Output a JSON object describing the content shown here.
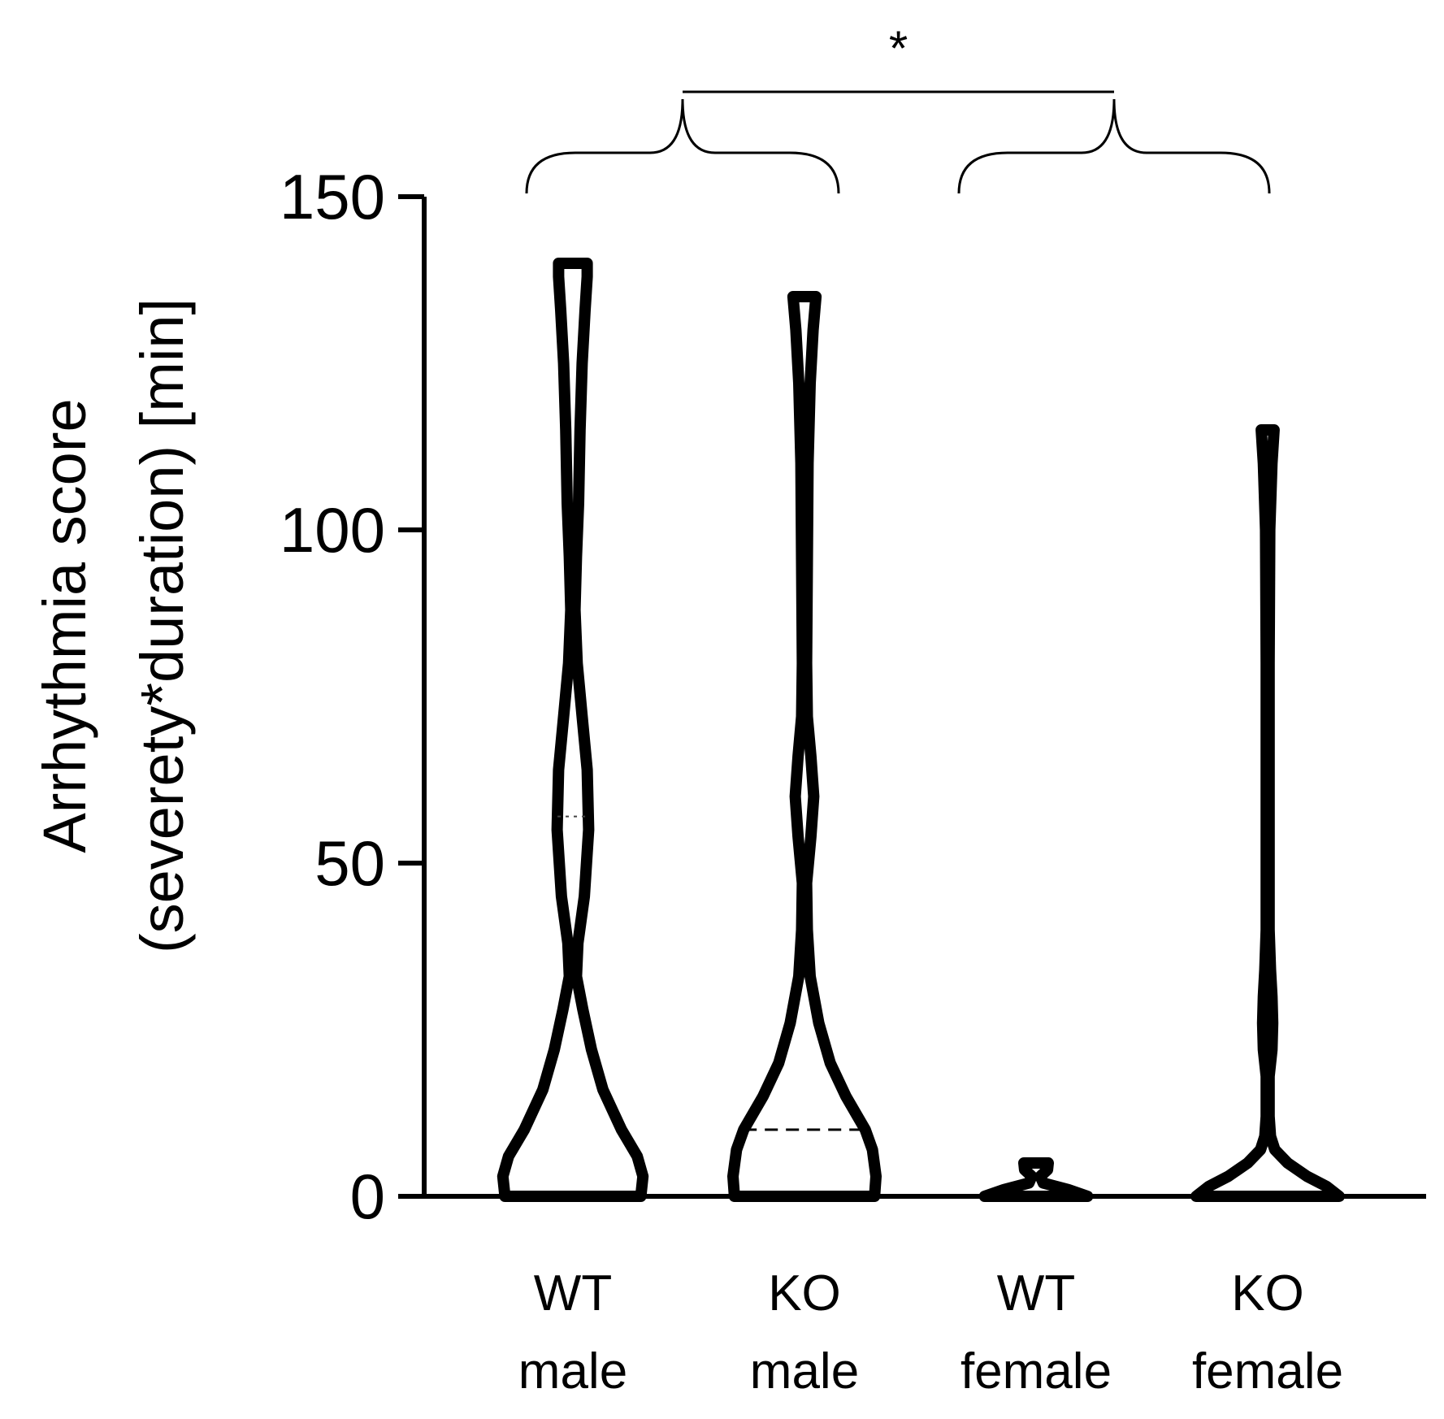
{
  "chart_data": {
    "type": "violin",
    "title": "",
    "xlabel": "",
    "ylabel_line1": "Arrhythmia score",
    "ylabel_line2": "(severety*duration) [min]",
    "ylim": [
      0,
      150
    ],
    "yticks": [
      0,
      50,
      100,
      150
    ],
    "categories": [
      {
        "name": "WT",
        "group": "male"
      },
      {
        "name": "KO",
        "group": "male"
      },
      {
        "name": "WT",
        "group": "female"
      },
      {
        "name": "KO",
        "group": "female"
      }
    ],
    "violins": [
      {
        "label": "WT male",
        "max": 140,
        "median": 57,
        "profile": [
          [
            0,
            0.95
          ],
          [
            3,
            0.98
          ],
          [
            6,
            0.9
          ],
          [
            10,
            0.68
          ],
          [
            16,
            0.42
          ],
          [
            22,
            0.26
          ],
          [
            28,
            0.14
          ],
          [
            33,
            0.05
          ],
          [
            38,
            0.07
          ],
          [
            45,
            0.16
          ],
          [
            55,
            0.22
          ],
          [
            64,
            0.2
          ],
          [
            72,
            0.13
          ],
          [
            80,
            0.06
          ],
          [
            88,
            0.03
          ],
          [
            96,
            0.05
          ],
          [
            104,
            0.08
          ],
          [
            115,
            0.1
          ],
          [
            125,
            0.13
          ],
          [
            133,
            0.17
          ],
          [
            138,
            0.2
          ],
          [
            140,
            0.2
          ]
        ]
      },
      {
        "label": "KO male",
        "max": 135,
        "median": 10,
        "profile": [
          [
            0,
            0.98
          ],
          [
            3,
            1.0
          ],
          [
            7,
            0.95
          ],
          [
            10,
            0.85
          ],
          [
            15,
            0.58
          ],
          [
            20,
            0.36
          ],
          [
            26,
            0.2
          ],
          [
            33,
            0.08
          ],
          [
            40,
            0.04
          ],
          [
            47,
            0.03
          ],
          [
            54,
            0.09
          ],
          [
            60,
            0.13
          ],
          [
            66,
            0.09
          ],
          [
            72,
            0.04
          ],
          [
            80,
            0.03
          ],
          [
            95,
            0.04
          ],
          [
            110,
            0.05
          ],
          [
            122,
            0.08
          ],
          [
            130,
            0.12
          ],
          [
            135,
            0.16
          ]
        ]
      },
      {
        "label": "WT female",
        "max": 5,
        "median": 0,
        "profile": [
          [
            0,
            0.72
          ],
          [
            1,
            0.45
          ],
          [
            2,
            0.1
          ],
          [
            3,
            0.06
          ],
          [
            4,
            0.16
          ],
          [
            5,
            0.17
          ]
        ]
      },
      {
        "label": "KO female",
        "max": 115,
        "median": 0,
        "profile": [
          [
            0,
            1.0
          ],
          [
            1.5,
            0.82
          ],
          [
            3,
            0.55
          ],
          [
            5,
            0.28
          ],
          [
            7,
            0.1
          ],
          [
            9,
            0.04
          ],
          [
            12,
            0.02
          ],
          [
            18,
            0.02
          ],
          [
            22,
            0.06
          ],
          [
            26,
            0.07
          ],
          [
            30,
            0.06
          ],
          [
            34,
            0.04
          ],
          [
            40,
            0.02
          ],
          [
            80,
            0.02
          ],
          [
            100,
            0.03
          ],
          [
            110,
            0.06
          ],
          [
            115,
            0.09
          ]
        ]
      }
    ],
    "significance": {
      "label": "*",
      "compare": [
        "male",
        "female"
      ]
    }
  }
}
